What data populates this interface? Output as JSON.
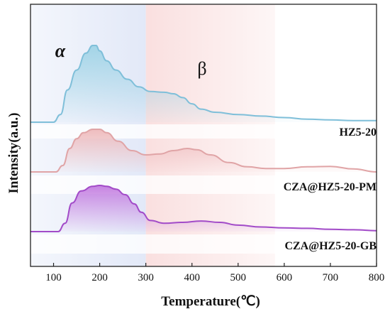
{
  "chart_data": {
    "type": "line",
    "title": "",
    "xlabel": "Temperature(℃)",
    "ylabel": "Intensity(a.u.)",
    "xlim": [
      50,
      800
    ],
    "xticks": [
      100,
      200,
      300,
      400,
      500,
      600,
      700,
      800
    ],
    "grid": false,
    "regions": [
      {
        "label": "α",
        "x_range": [
          50,
          300
        ],
        "color": "#dfe6f7"
      },
      {
        "label": "β",
        "x_range": [
          300,
          580
        ],
        "color": "#f9dcdc"
      }
    ],
    "series": [
      {
        "name": "HZ5-20",
        "color": "#7fbfd9",
        "fill": "#9fd3e6",
        "x": [
          50,
          100,
          115,
          130,
          150,
          170,
          185,
          192,
          200,
          215,
          235,
          260,
          285,
          310,
          340,
          360,
          380,
          400,
          420,
          450,
          500,
          550,
          600,
          650,
          700,
          750,
          800
        ],
        "y": [
          0,
          0,
          0.1,
          0.42,
          0.68,
          0.9,
          1.0,
          1.0,
          0.93,
          0.8,
          0.68,
          0.56,
          0.46,
          0.4,
          0.39,
          0.37,
          0.32,
          0.24,
          0.17,
          0.13,
          0.1,
          0.08,
          0.06,
          0.04,
          0.03,
          0.02,
          0.02
        ]
      },
      {
        "name": "CZA@HZ5-20-PM",
        "color": "#e0a4a6",
        "fill": "#eeb9bb",
        "x": [
          50,
          105,
          120,
          135,
          150,
          165,
          185,
          200,
          215,
          240,
          270,
          300,
          330,
          360,
          390,
          410,
          440,
          480,
          520,
          560,
          600,
          650,
          700,
          750,
          800
        ],
        "y": [
          0,
          0,
          0.15,
          0.55,
          0.78,
          0.92,
          1.0,
          1.0,
          0.92,
          0.72,
          0.5,
          0.4,
          0.42,
          0.5,
          0.55,
          0.52,
          0.4,
          0.22,
          0.12,
          0.08,
          0.08,
          0.12,
          0.13,
          0.07,
          0.0
        ]
      },
      {
        "name": "CZA@HZ5-20-GB",
        "color": "#a24bc8",
        "fill": "#c37ce0",
        "x": [
          50,
          110,
          125,
          140,
          160,
          185,
          200,
          215,
          235,
          255,
          275,
          290,
          310,
          340,
          380,
          420,
          460,
          500,
          550,
          600,
          650,
          700,
          750,
          800
        ],
        "y": [
          0,
          0,
          0.18,
          0.62,
          0.88,
          0.98,
          1.0,
          0.98,
          0.92,
          0.8,
          0.6,
          0.42,
          0.24,
          0.18,
          0.2,
          0.23,
          0.2,
          0.14,
          0.1,
          0.08,
          0.07,
          0.05,
          0.04,
          0.02
        ]
      }
    ]
  }
}
